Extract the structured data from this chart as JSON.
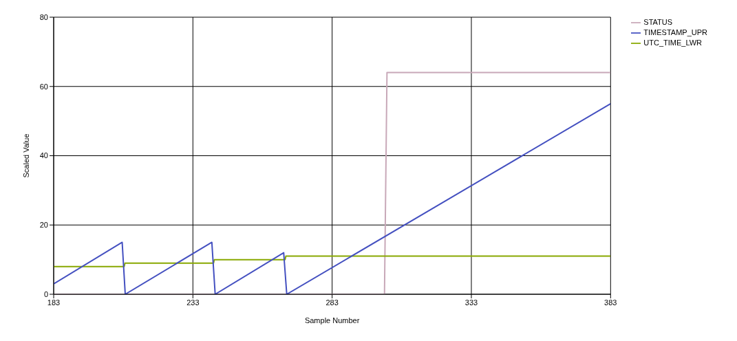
{
  "chart_data": {
    "type": "line",
    "xlabel": "Sample Number",
    "ylabel": "Scaled Value",
    "xlim": [
      183,
      383
    ],
    "xticks": [
      183,
      233,
      283,
      333,
      383
    ],
    "ylim": [
      0,
      80
    ],
    "yticks": [
      0,
      20,
      40,
      60,
      80
    ],
    "grid": true,
    "legend": "top right",
    "marker": "none",
    "line_style": "solid",
    "series": [
      {
        "name": "STATUS",
        "color": "#c8a8b8",
        "x": [
          183,
          301.8,
          302.7,
          383
        ],
        "values": [
          0,
          0,
          64,
          64
        ]
      },
      {
        "name": "UTC_TIME_LWR",
        "color": "#88a800",
        "x": [
          183,
          208.3,
          208.6,
          240.4,
          240.7,
          266.1,
          266.4,
          383
        ],
        "values": [
          8,
          8,
          9,
          9,
          10,
          10,
          11,
          11
        ]
      },
      {
        "name": "TIMESTAMP_UPR",
        "color": "#4450c0",
        "x": [
          183,
          207.6,
          208.7,
          239.8,
          241,
          265.6,
          266.7,
          383
        ],
        "values": [
          3,
          15,
          0,
          15,
          0,
          12,
          0,
          55
        ]
      }
    ]
  }
}
